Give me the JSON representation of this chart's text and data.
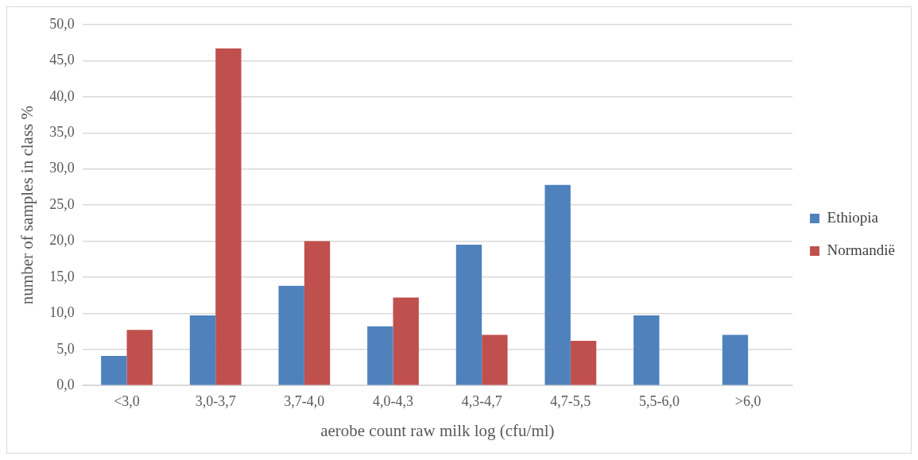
{
  "chart_data": {
    "type": "bar",
    "xlabel": "aerobe count raw milk log (cfu/ml)",
    "ylabel": "number of samples in class %",
    "categories": [
      "<3,0",
      "3,0-3,7",
      "3,7-4,0",
      "4,0-4,3",
      "4,3-4,7",
      "4,7-5,5",
      "5,5-6,0",
      ">6,0"
    ],
    "series": [
      {
        "name": "Ethiopia",
        "color": "#4f81bd",
        "values": [
          4.1,
          9.7,
          13.8,
          8.2,
          19.5,
          27.8,
          9.7,
          7.0
        ]
      },
      {
        "name": "Normandië",
        "color": "#c0504d",
        "values": [
          7.7,
          46.7,
          20.0,
          12.2,
          7.0,
          6.2,
          0,
          0
        ]
      }
    ],
    "ylim": [
      0,
      50
    ],
    "yticks": [
      {
        "value": 0,
        "label": "0,0"
      },
      {
        "value": 5,
        "label": "5,0"
      },
      {
        "value": 10,
        "label": "10,0"
      },
      {
        "value": 15,
        "label": "15,0"
      },
      {
        "value": 20,
        "label": "20,0"
      },
      {
        "value": 25,
        "label": "25,0"
      },
      {
        "value": 30,
        "label": "30,0"
      },
      {
        "value": 35,
        "label": "35,0"
      },
      {
        "value": 40,
        "label": "40,0"
      },
      {
        "value": 45,
        "label": "45,0"
      },
      {
        "value": 50,
        "label": "50,0"
      }
    ],
    "grid": "y",
    "legend": "right"
  }
}
